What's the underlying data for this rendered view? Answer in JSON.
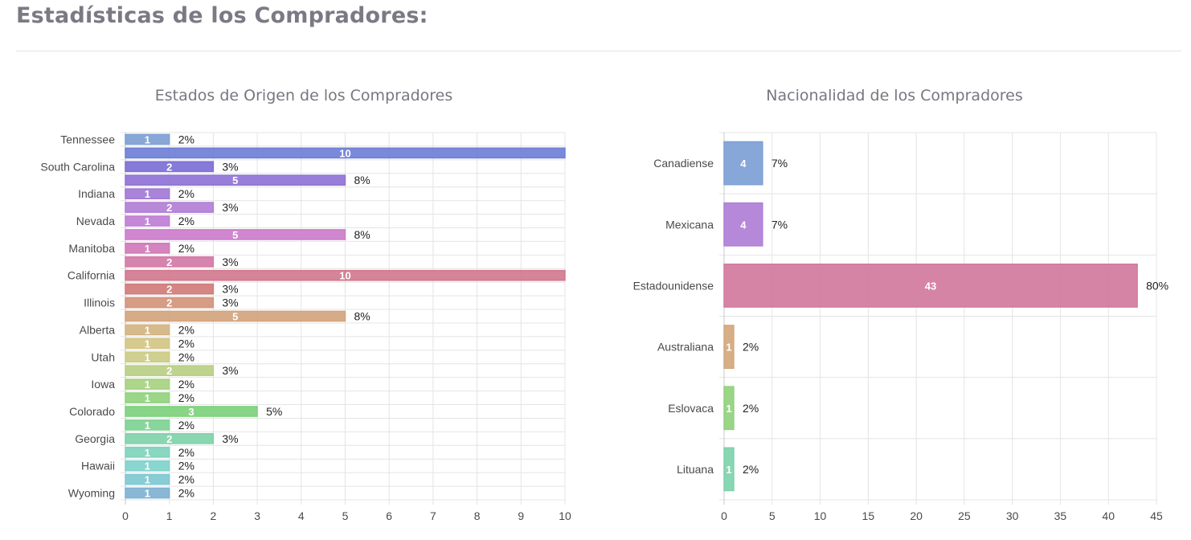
{
  "page": {
    "heading": "Estadísticas de los Compradores:"
  },
  "chart_data": [
    {
      "type": "bar",
      "orientation": "horizontal",
      "title": "Estados de Origen de los Compradores",
      "categories": [
        "Tennessee",
        "",
        "South Carolina",
        "",
        "Indiana",
        "",
        "Nevada",
        "",
        "Manitoba",
        "",
        "California",
        "",
        "Illinois",
        "",
        "Alberta",
        "",
        "Utah",
        "",
        "Iowa",
        "",
        "Colorado",
        "",
        "Georgia",
        "",
        "Hawaii",
        "",
        "Wyoming"
      ],
      "values": [
        1,
        10,
        2,
        5,
        1,
        2,
        1,
        5,
        1,
        2,
        10,
        2,
        2,
        5,
        1,
        1,
        1,
        2,
        1,
        1,
        3,
        1,
        2,
        1,
        1,
        1,
        1
      ],
      "percent_labels": [
        "2%",
        "",
        "3%",
        "8%",
        "2%",
        "3%",
        "2%",
        "8%",
        "2%",
        "3%",
        "",
        "3%",
        "3%",
        "8%",
        "2%",
        "2%",
        "2%",
        "3%",
        "2%",
        "2%",
        "5%",
        "2%",
        "3%",
        "2%",
        "2%",
        "2%",
        "2%"
      ],
      "colors": [
        "#7ea0d4",
        "#6f7fd6",
        "#7d6fd6",
        "#8f73d6",
        "#a27ad6",
        "#b27ed6",
        "#c07ed6",
        "#cc7dcc",
        "#d07ab8",
        "#d27aa6",
        "#d27a8e",
        "#d07c7a",
        "#d2947a",
        "#d2a47e",
        "#d2b482",
        "#d2c586",
        "#cbcc86",
        "#b9cf84",
        "#a6d181",
        "#92d17e",
        "#7fd17e",
        "#7fd294",
        "#7fd2aa",
        "#7fd2bc",
        "#7fd2cc",
        "#7ec8d2",
        "#7eb2d2"
      ],
      "xlim": [
        0,
        10
      ],
      "xticks": [
        "0",
        "1",
        "2",
        "3",
        "4",
        "5",
        "6",
        "7",
        "8",
        "9",
        "10"
      ],
      "grid": true
    },
    {
      "type": "bar",
      "orientation": "horizontal",
      "title": "Nacionalidad de los Compradores",
      "categories": [
        "Canadiense",
        "Mexicana",
        "Estadounidense",
        "Australiana",
        "Eslovaca",
        "Lituana"
      ],
      "values": [
        4,
        4,
        43,
        1,
        1,
        1
      ],
      "percent_labels": [
        "7%",
        "7%",
        "80%",
        "2%",
        "2%",
        "2%"
      ],
      "colors": [
        "#7d9fd6",
        "#b07ed6",
        "#d27a9e",
        "#d2a87e",
        "#93d17e",
        "#7fd2ac"
      ],
      "xlim": [
        0,
        45
      ],
      "xticks": [
        "0",
        "5",
        "10",
        "15",
        "20",
        "25",
        "30",
        "35",
        "40",
        "45"
      ],
      "grid": true
    }
  ]
}
